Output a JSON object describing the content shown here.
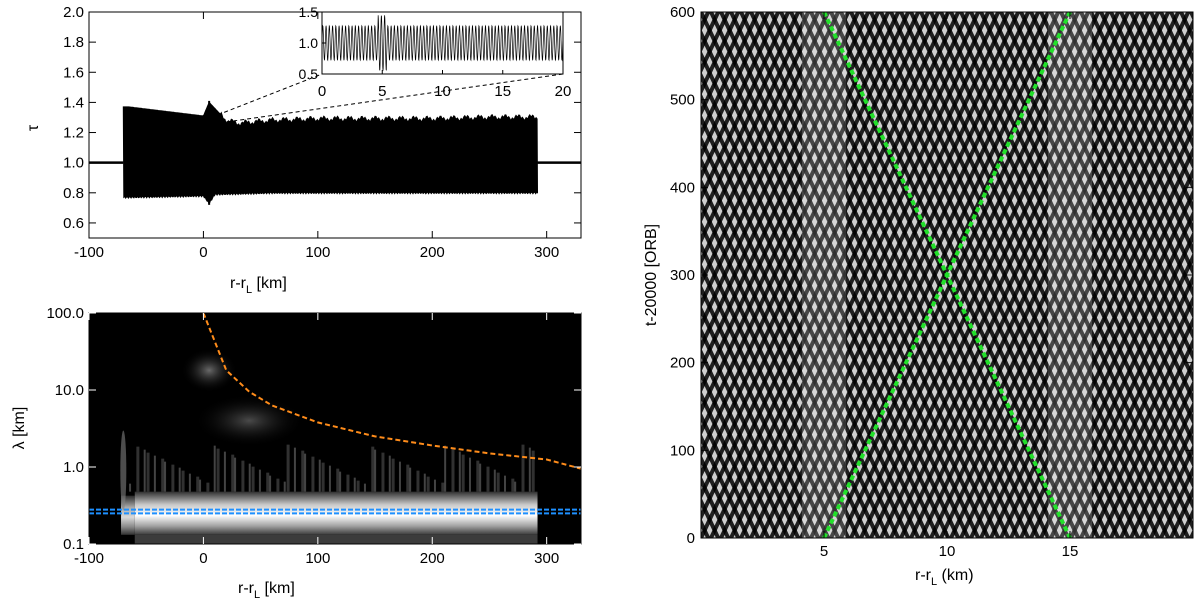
{
  "chart_data": [
    {
      "id": "top-left",
      "type": "line",
      "xlabel": "r-r",
      "xlabel_sub": "L",
      "xlabel_suffix": " [km]",
      "ylabel": "τ",
      "xlim": [
        -100,
        330
      ],
      "ylim": [
        0.5,
        2.0
      ],
      "xticks": [
        -100,
        0,
        100,
        200,
        300
      ],
      "xtick_labels": [
        "-100",
        "0",
        "100",
        "200",
        "300"
      ],
      "yticks": [
        0.6,
        0.8,
        1.0,
        1.2,
        1.4,
        1.6,
        1.8,
        2.0
      ],
      "ytick_labels": [
        "0.6",
        "0.8",
        "1.0",
        "1.2",
        "1.4",
        "1.6",
        "1.8",
        "2.0"
      ],
      "baseline": 1.0,
      "band_x": [
        -70,
        292
      ],
      "band_upper_x": [
        -70,
        -65,
        0,
        5,
        20,
        30,
        60,
        100,
        150,
        200,
        250,
        292
      ],
      "band_upper_y": [
        1.37,
        1.37,
        1.31,
        1.4,
        1.28,
        1.26,
        1.28,
        1.29,
        1.29,
        1.29,
        1.3,
        1.3
      ],
      "band_lower_x": [
        -70,
        0,
        5,
        10,
        60,
        150,
        292
      ],
      "band_lower_y": [
        0.77,
        0.78,
        0.73,
        0.79,
        0.8,
        0.8,
        0.8
      ],
      "zoom_source_x": [
        5,
        20
      ],
      "inset": {
        "xlim": [
          0,
          20
        ],
        "ylim": [
          0.5,
          1.5
        ],
        "xticks": [
          0,
          5,
          10,
          15,
          20
        ],
        "xtick_labels": [
          "0",
          "5",
          "10",
          "15",
          "20"
        ],
        "yticks": [
          0.5,
          1.0,
          1.5
        ],
        "ytick_labels": [
          "0.5",
          "1.0",
          "1.5"
        ],
        "oscillation_center": 1.0,
        "oscillation_amplitude": 0.28,
        "oscillation_wavelength_km": 0.27
      }
    },
    {
      "id": "bottom-left",
      "type": "heatmap",
      "xlabel": "r-r",
      "xlabel_sub": "L",
      "xlabel_suffix": " [km]",
      "ylabel": "λ [km]",
      "xlim": [
        -100,
        330
      ],
      "ylim": [
        0.1,
        100.0
      ],
      "yscale": "log",
      "xticks": [
        -100,
        0,
        100,
        200,
        300
      ],
      "xtick_labels": [
        "-100",
        "0",
        "100",
        "200",
        "300"
      ],
      "yticks": [
        0.1,
        1.0,
        10.0,
        100.0
      ],
      "ytick_labels": [
        "0.1",
        "1.0",
        "10.0",
        "100.0"
      ],
      "bright_band_x": [
        -60,
        292
      ],
      "bright_band_lambda": [
        0.2,
        0.4
      ],
      "blue_lines_lambda": [
        0.25,
        0.28
      ],
      "blue_color": "#1e90ff",
      "orange_color": "#ff8c1a",
      "orange_curve_x": [
        0,
        20,
        40,
        60,
        100,
        150,
        200,
        250,
        300,
        330
      ],
      "orange_curve_y": [
        100,
        18,
        9.5,
        6.3,
        3.8,
        2.5,
        1.9,
        1.5,
        1.25,
        0.95
      ]
    },
    {
      "id": "right",
      "type": "heatmap",
      "xlabel": "r-r",
      "xlabel_sub": "L",
      "xlabel_suffix": " (km)",
      "ylabel": "t-20000 [ORB]",
      "xlim": [
        0,
        20
      ],
      "ylim": [
        0,
        600
      ],
      "xticks": [
        5,
        10,
        15
      ],
      "xtick_labels": [
        "5",
        "10",
        "15"
      ],
      "yticks": [
        0,
        100,
        200,
        300,
        400,
        500,
        600
      ],
      "ytick_labels": [
        "0",
        "100",
        "200",
        "300",
        "400",
        "500",
        "600"
      ],
      "green_color": "#22e02a",
      "green_line_1": [
        [
          5,
          0
        ],
        [
          15,
          600
        ]
      ],
      "green_line_2": [
        [
          5,
          600
        ],
        [
          15,
          0
        ]
      ],
      "interference_columns_x": [
        5,
        15
      ]
    }
  ]
}
